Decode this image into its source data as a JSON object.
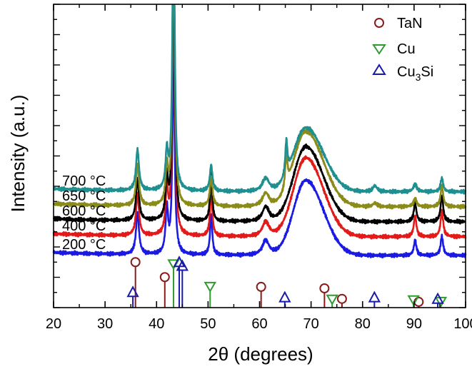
{
  "chart_data": {
    "type": "line",
    "title": "",
    "xlabel": "2θ (degrees)",
    "ylabel": "Intensity (a.u.)",
    "xlim": [
      20,
      100
    ],
    "xticks": [
      20,
      30,
      40,
      50,
      60,
      70,
      80,
      90,
      100
    ],
    "y_tick_labels": false,
    "legend": {
      "placement": "top-right",
      "entries": [
        {
          "name": "TaN",
          "marker": "circle",
          "color": "#8b1a1a"
        },
        {
          "name": "Cu",
          "marker": "triangle-down",
          "color": "#2e9b2e"
        },
        {
          "name": "Cu3Si",
          "marker": "triangle-up",
          "color": "#1a1aa8",
          "label_main": "Cu",
          "label_sub": "3",
          "label_tail": "Si"
        }
      ]
    },
    "series": [
      {
        "name": "700 °C",
        "color": "#1f8f8f",
        "baseline": 0.85,
        "peaks": [
          [
            36.3,
            0.55,
            0.35
          ],
          [
            42.0,
            0.5,
            0.3
          ],
          [
            43.3,
            4.0,
            0.25
          ],
          [
            50.6,
            0.35,
            0.3
          ],
          [
            61.2,
            0.18,
            0.8
          ],
          [
            65.2,
            0.45,
            0.25
          ],
          [
            69.0,
            0.85,
            4.0
          ],
          [
            82.4,
            0.08,
            0.5
          ],
          [
            90.2,
            0.1,
            0.4
          ],
          [
            95.4,
            0.18,
            0.3
          ]
        ]
      },
      {
        "name": "650 °C",
        "color": "#8b8b1a",
        "baseline": 0.65,
        "peaks": [
          [
            36.3,
            0.55,
            0.35
          ],
          [
            42.0,
            0.5,
            0.3
          ],
          [
            43.3,
            4.0,
            0.25
          ],
          [
            50.6,
            0.4,
            0.3
          ],
          [
            61.2,
            0.18,
            0.8
          ],
          [
            65.2,
            0.45,
            0.25
          ],
          [
            69.0,
            1.0,
            4.0
          ],
          [
            82.4,
            0.05,
            0.5
          ],
          [
            90.2,
            0.1,
            0.4
          ],
          [
            95.4,
            0.28,
            0.3
          ]
        ]
      },
      {
        "name": "600 °C",
        "color": "#000000",
        "baseline": 0.45,
        "peaks": [
          [
            36.3,
            0.55,
            0.35
          ],
          [
            42.0,
            0.55,
            0.3
          ],
          [
            43.3,
            4.0,
            0.25
          ],
          [
            50.6,
            0.65,
            0.25
          ],
          [
            61.2,
            0.2,
            0.8
          ],
          [
            69.0,
            1.0,
            4.0
          ],
          [
            90.2,
            0.25,
            0.3
          ],
          [
            95.4,
            0.35,
            0.3
          ]
        ]
      },
      {
        "name": "400 °C",
        "color": "#e31a1a",
        "baseline": 0.25,
        "peaks": [
          [
            36.3,
            0.55,
            0.35
          ],
          [
            42.0,
            0.6,
            0.3
          ],
          [
            43.3,
            4.0,
            0.25
          ],
          [
            50.6,
            0.65,
            0.25
          ],
          [
            61.2,
            0.2,
            0.8
          ],
          [
            69.0,
            1.05,
            4.0
          ],
          [
            90.2,
            0.28,
            0.3
          ],
          [
            95.4,
            0.35,
            0.3
          ]
        ]
      },
      {
        "name": "200 °C",
        "color": "#1a1ae3",
        "baseline": 0.0,
        "peaks": [
          [
            36.3,
            0.55,
            0.35
          ],
          [
            42.0,
            0.6,
            0.3
          ],
          [
            43.3,
            2.8,
            0.25
          ],
          [
            50.6,
            0.55,
            0.25
          ],
          [
            61.2,
            0.2,
            0.8
          ],
          [
            69.0,
            1.0,
            4.0
          ],
          [
            90.2,
            0.2,
            0.3
          ],
          [
            95.4,
            0.25,
            0.3
          ]
        ]
      }
    ],
    "reference_lines": {
      "TaN": [
        35.9,
        41.6,
        60.3,
        72.6,
        76.0,
        90.9
      ],
      "Cu": [
        43.3,
        50.4,
        74.1,
        89.9,
        95.2
      ],
      "Cu3Si": [
        35.4,
        44.4,
        45.0,
        64.9,
        82.3,
        94.6
      ]
    },
    "reference_heights": {
      "TaN": [
        0.55,
        0.35,
        0.22,
        0.2,
        0.06,
        0.02
      ],
      "Cu": [
        0.52,
        0.22,
        0.05,
        0.04,
        0.02
      ],
      "Cu3Si": [
        0.15,
        0.55,
        0.5,
        0.08,
        0.08,
        0.06
      ]
    }
  }
}
